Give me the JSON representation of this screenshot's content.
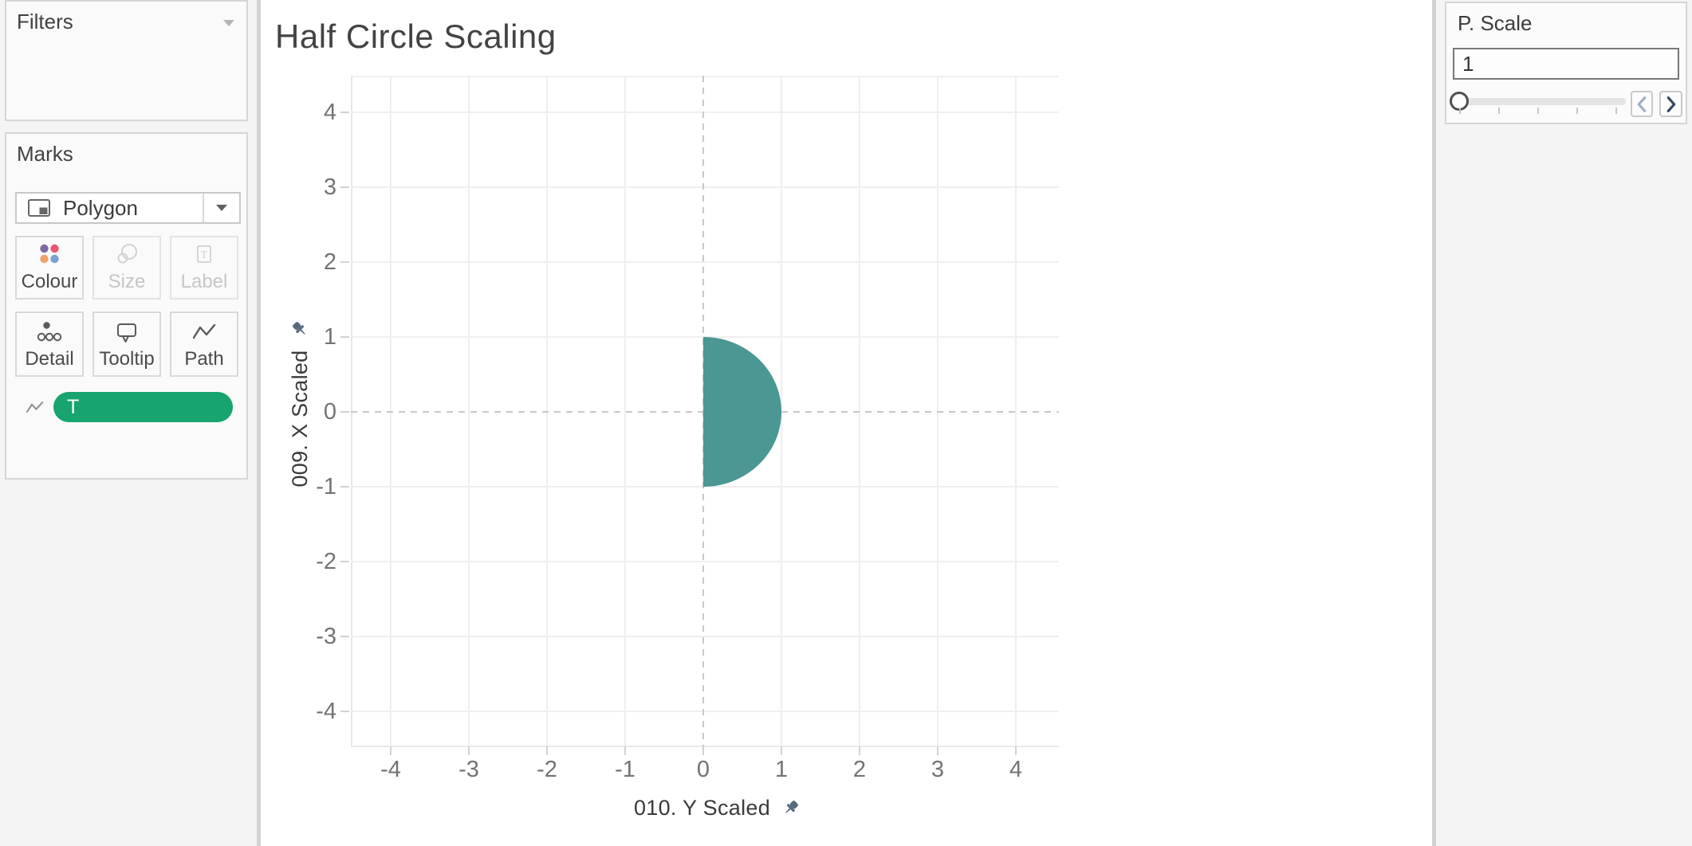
{
  "sheet": {
    "title": "Half Circle Scaling"
  },
  "filters_panel": {
    "title": "Filters",
    "caret_icon": "chevron-down-icon"
  },
  "marks_panel": {
    "title": "Marks",
    "mark_type": {
      "label": "Polygon",
      "icon": "polygon-mark-icon",
      "caret_icon": "chevron-down-icon"
    },
    "buttons": [
      {
        "label": "Colour",
        "icon": "colour-dots-icon",
        "enabled": true,
        "dot_colors": [
          "#7e68a8",
          "#e8566f",
          "#efa06a",
          "#7aa0d4"
        ]
      },
      {
        "label": "Size",
        "icon": "size-circles-icon",
        "enabled": false
      },
      {
        "label": "Label",
        "icon": "label-text-icon",
        "enabled": false
      },
      {
        "label": "Detail",
        "icon": "detail-dots-icon",
        "enabled": true
      },
      {
        "label": "Tooltip",
        "icon": "tooltip-bubble-icon",
        "enabled": true
      },
      {
        "label": "Path",
        "icon": "path-zigzag-icon",
        "enabled": true
      }
    ],
    "pill": {
      "label": "T",
      "color": "#17a46f",
      "shelf_icon": "path-zigzag-icon"
    }
  },
  "chart_data": {
    "type": "area",
    "title": "Half Circle Scaling",
    "xlabel": "010. Y Scaled",
    "ylabel": "009. X Scaled",
    "xlim": [
      -4.5,
      4.5
    ],
    "ylim": [
      -4.5,
      4.5
    ],
    "x_ticks": [
      -4,
      -3,
      -2,
      -1,
      0,
      1,
      2,
      3,
      4
    ],
    "y_ticks": [
      4,
      3,
      2,
      1,
      0,
      -1,
      -2,
      -3,
      -4
    ],
    "x_tick_labels": [
      "-4",
      "-3",
      "-2",
      "-1",
      "0",
      "1",
      "2",
      "3",
      "4"
    ],
    "y_tick_labels": [
      "4",
      "3",
      "2",
      "1",
      "0",
      "-1",
      "-2",
      "-3",
      "-4"
    ],
    "grid": true,
    "zero_lines": "dashed",
    "legend_position": "none",
    "axis_pin_icon": "pin-icon",
    "series": [
      {
        "name": "T",
        "mark": "polygon",
        "shape": "right_half_circle",
        "center": [
          0,
          0
        ],
        "radius": 1,
        "angle_start_deg": -90,
        "angle_end_deg": 90,
        "fill": "#4a9793"
      }
    ]
  },
  "parameter_panel": {
    "title": "P. Scale",
    "value": "1",
    "slider": {
      "position": "min",
      "tick_count": 5
    },
    "stepper": {
      "back_icon": "chevron-left-icon",
      "back_color": "#9fafc2",
      "forward_icon": "chevron-right-icon",
      "forward_color": "#31485e"
    }
  },
  "colors": {
    "half_circle_fill": "#4a9793",
    "pill_green": "#17a46f",
    "pin_slate": "#566b80",
    "sidebar_bg": "#f4f4f4",
    "gridline": "#efefef",
    "zero_line": "#c8c8c8"
  }
}
